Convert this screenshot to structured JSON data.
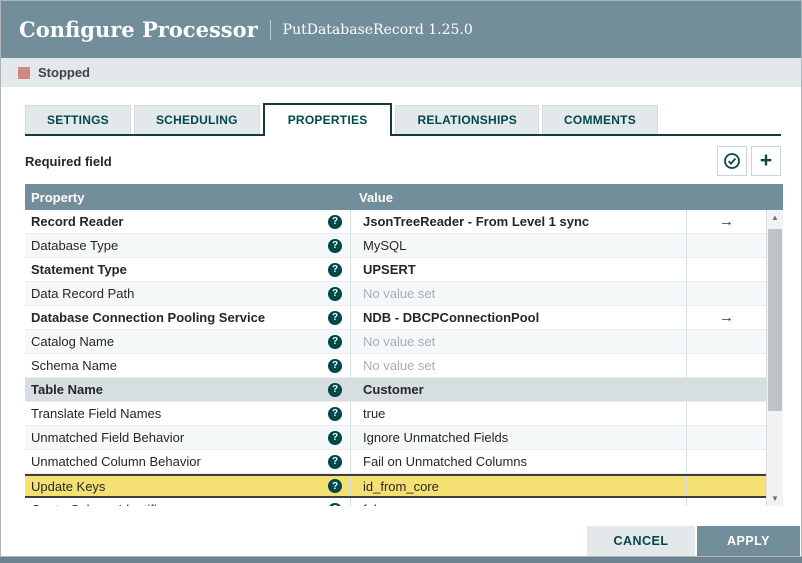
{
  "dialog": {
    "title": "Configure Processor",
    "subtitle": "PutDatabaseRecord 1.25.0",
    "status": {
      "label": "Stopped",
      "color": "#D18686"
    }
  },
  "tabs": [
    {
      "label": "SETTINGS",
      "active": false
    },
    {
      "label": "SCHEDULING",
      "active": false
    },
    {
      "label": "PROPERTIES",
      "active": true
    },
    {
      "label": "RELATIONSHIPS",
      "active": false
    },
    {
      "label": "COMMENTS",
      "active": false
    }
  ],
  "toolbar": {
    "required_field_label": "Required field",
    "icons": [
      {
        "name": "verify-properties-icon",
        "glyph": "circled-check"
      },
      {
        "name": "add-property-icon",
        "glyph": "plus"
      }
    ]
  },
  "table": {
    "columns": {
      "property": "Property",
      "value": "Value"
    },
    "help_glyph": "?",
    "arrow_glyph": "→",
    "rows": [
      {
        "property": "Record Reader",
        "value": "JsonTreeReader - From Level 1 sync",
        "required": true,
        "has_arrow": true,
        "state": "normal"
      },
      {
        "property": "Database Type",
        "value": "MySQL",
        "required": false,
        "has_arrow": false,
        "state": "normal"
      },
      {
        "property": "Statement Type",
        "value": "UPSERT",
        "required": true,
        "has_arrow": false,
        "state": "normal"
      },
      {
        "property": "Data Record Path",
        "value": "No value set",
        "required": false,
        "has_arrow": false,
        "state": "normal",
        "unset": true
      },
      {
        "property": "Database Connection Pooling Service",
        "value": "NDB - DBCPConnectionPool",
        "required": true,
        "has_arrow": true,
        "state": "normal"
      },
      {
        "property": "Catalog Name",
        "value": "No value set",
        "required": false,
        "has_arrow": false,
        "state": "normal",
        "unset": true
      },
      {
        "property": "Schema Name",
        "value": "No value set",
        "required": false,
        "has_arrow": false,
        "state": "normal",
        "unset": true
      },
      {
        "property": "Table Name",
        "value": "Customer",
        "required": true,
        "has_arrow": false,
        "state": "selected"
      },
      {
        "property": "Translate Field Names",
        "value": "true",
        "required": false,
        "has_arrow": false,
        "state": "normal"
      },
      {
        "property": "Unmatched Field Behavior",
        "value": "Ignore Unmatched Fields",
        "required": false,
        "has_arrow": false,
        "state": "normal"
      },
      {
        "property": "Unmatched Column Behavior",
        "value": "Fail on Unmatched Columns",
        "required": false,
        "has_arrow": false,
        "state": "normal"
      },
      {
        "property": "Update Keys",
        "value": "id_from_core",
        "required": false,
        "has_arrow": false,
        "state": "highlighted"
      },
      {
        "property": "Quote Column Identifiers",
        "value": "false",
        "required": false,
        "has_arrow": false,
        "state": "normal",
        "clipped": true
      }
    ]
  },
  "footer": {
    "cancel_label": "CANCEL",
    "apply_label": "APPLY"
  },
  "colors": {
    "header_slate": "#728E9B",
    "bar_gray": "#E3E8EB",
    "accent_teal": "#004849",
    "stopped_red": "#D18686",
    "selected_row": "#D7DEE2",
    "highlight_row": "#F5E073"
  }
}
